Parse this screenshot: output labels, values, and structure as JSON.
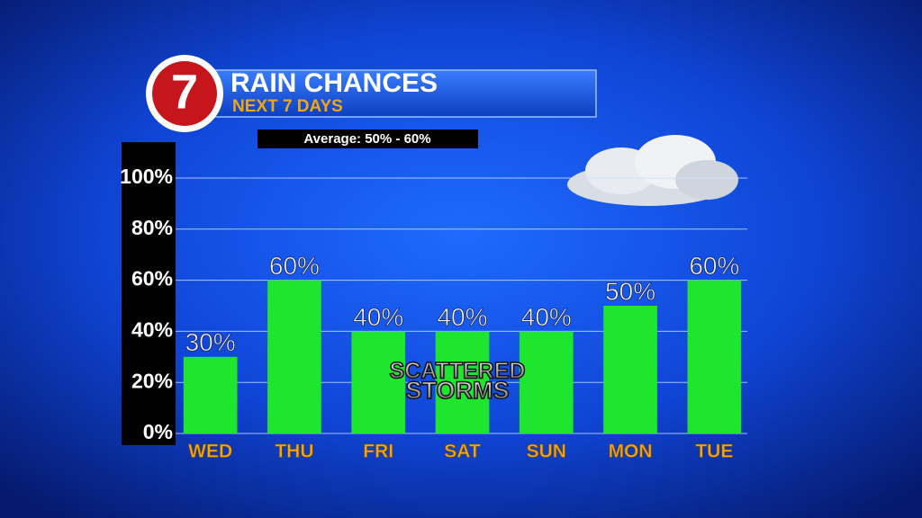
{
  "chart_data": {
    "type": "bar",
    "logo": "7",
    "title": "RAIN CHANCES",
    "subtitle": "NEXT 7 DAYS",
    "note": "Average: 50% - 60%",
    "annotations": [
      "SCATTERED",
      "STORMS"
    ],
    "categories": [
      "WED",
      "THU",
      "FRI",
      "SAT",
      "SUN",
      "MON",
      "TUE"
    ],
    "values": [
      30,
      60,
      40,
      40,
      40,
      50,
      60
    ],
    "value_labels": [
      "30%",
      "60%",
      "40%",
      "40%",
      "40%",
      "50%",
      "60%"
    ],
    "color": "#1ee62e",
    "ylim": [
      0,
      100
    ],
    "yticks": [
      {
        "value": 0,
        "label": "0%"
      },
      {
        "value": 20,
        "label": "20%"
      },
      {
        "value": 40,
        "label": "40%"
      },
      {
        "value": 60,
        "label": "60%"
      },
      {
        "value": 80,
        "label": "80%"
      },
      {
        "value": 100,
        "label": "100%"
      }
    ],
    "grid": true
  }
}
